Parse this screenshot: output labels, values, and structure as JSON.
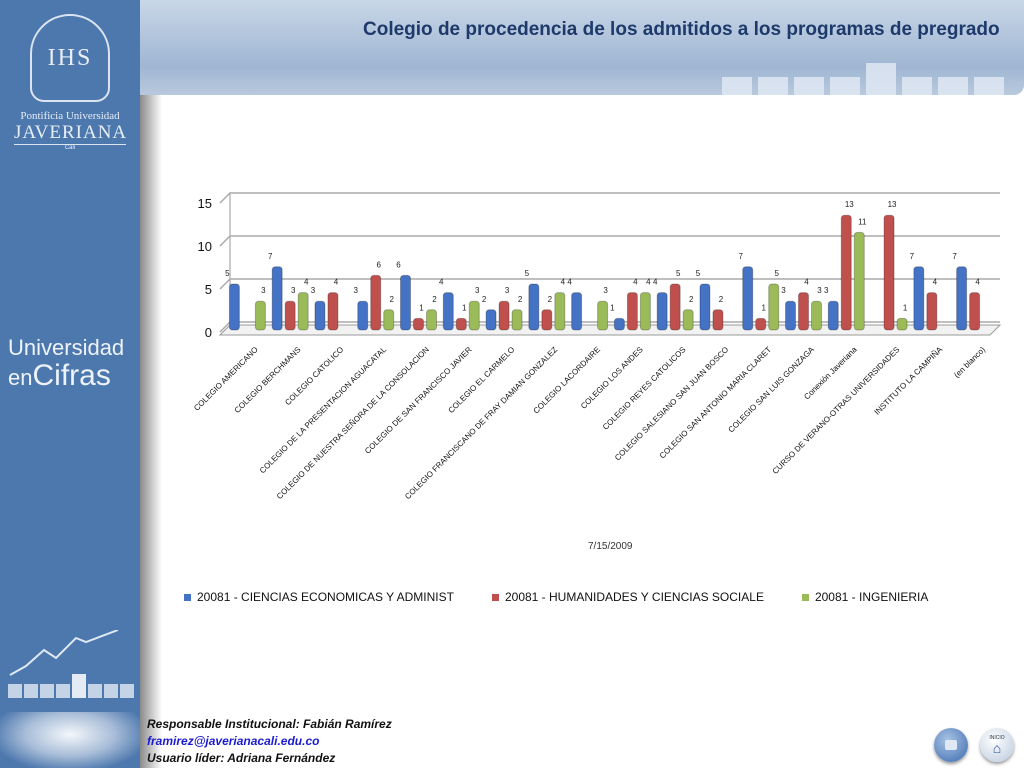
{
  "title": "Colegio  de procedencia de  los  admitidos a los programas de pregrado",
  "logo": {
    "line1": "Pontificia Universidad",
    "line2": "JAVERIANA",
    "line3": "Cali",
    "crest": "IHS"
  },
  "sidebar": {
    "brand_line1": "Universidad",
    "brand_en": "en",
    "brand_big": "Cifras"
  },
  "footer": {
    "responsible": "Responsable Institucional: Fabián Ramírez",
    "email": "framirez@javerianacali.edu.co",
    "leader": "Usuario líder: Adriana Fernández"
  },
  "nav": {
    "home_label": "INICIO"
  },
  "colors": {
    "blue": "#4472c4",
    "red": "#c0504d",
    "green": "#9bbb59",
    "sidebar": "#4d78ae",
    "title": "#1d3a6b"
  },
  "chart_data": {
    "type": "bar",
    "title": "Colegio  de procedencia de  los  admitidos a los programas de pregrado",
    "xlabel": "7/15/2009",
    "ylabel": "",
    "ylim": [
      0,
      15
    ],
    "yticks": [
      0,
      5,
      10,
      15
    ],
    "grid": true,
    "legend": "bottom",
    "categories": [
      "COLEGIO AMERICANO",
      "COLEGIO BERCHMANS",
      "COLEGIO CATOLICO",
      "COLEGIO DE LA PRESENTACION AGUACATAL",
      "COLEGIO DE NUESTRA SEÑORA DE LA CONSOLACION",
      "COLEGIO DE SAN FRANCISCO JAVIER",
      "COLEGIO EL CARMELO",
      "COLEGIO FRANCISCANO DE FRAY DAMIAN GONZALEZ",
      "COLEGIO LACORDAIRE",
      "COLEGIO LOS ANDES",
      "COLEGIO REYES CATOLICOS",
      "COLEGIO SALESIANO SAN JUAN BOSCO",
      "COLEGIO SAN ANTONIO MARIA CLARET",
      "COLEGIO SAN LUIS GONZAGA",
      "Conexión Javeriana",
      "CURSO DE VERANO-OTRAS UNIVERSIDADES",
      "INSTITUTO LA CAMPIÑA",
      "(en blanco)"
    ],
    "series": [
      {
        "name": "20081 - CIENCIAS ECONOMICAS Y ADMINIST",
        "values": [
          5,
          7,
          3,
          3,
          6,
          4,
          2,
          5,
          4,
          1,
          4,
          5,
          7,
          3,
          3,
          null,
          7,
          7
        ]
      },
      {
        "name": "20081 - HUMANIDADES Y CIENCIAS SOCIALE",
        "values": [
          null,
          3,
          4,
          6,
          1,
          1,
          3,
          2,
          null,
          4,
          5,
          2,
          1,
          4,
          13,
          13,
          4,
          4
        ]
      },
      {
        "name": "20081 - INGENIERIA",
        "values": [
          3,
          4,
          null,
          2,
          2,
          3,
          2,
          4,
          3,
          4,
          2,
          null,
          5,
          3,
          11,
          1,
          null,
          null
        ]
      }
    ]
  }
}
